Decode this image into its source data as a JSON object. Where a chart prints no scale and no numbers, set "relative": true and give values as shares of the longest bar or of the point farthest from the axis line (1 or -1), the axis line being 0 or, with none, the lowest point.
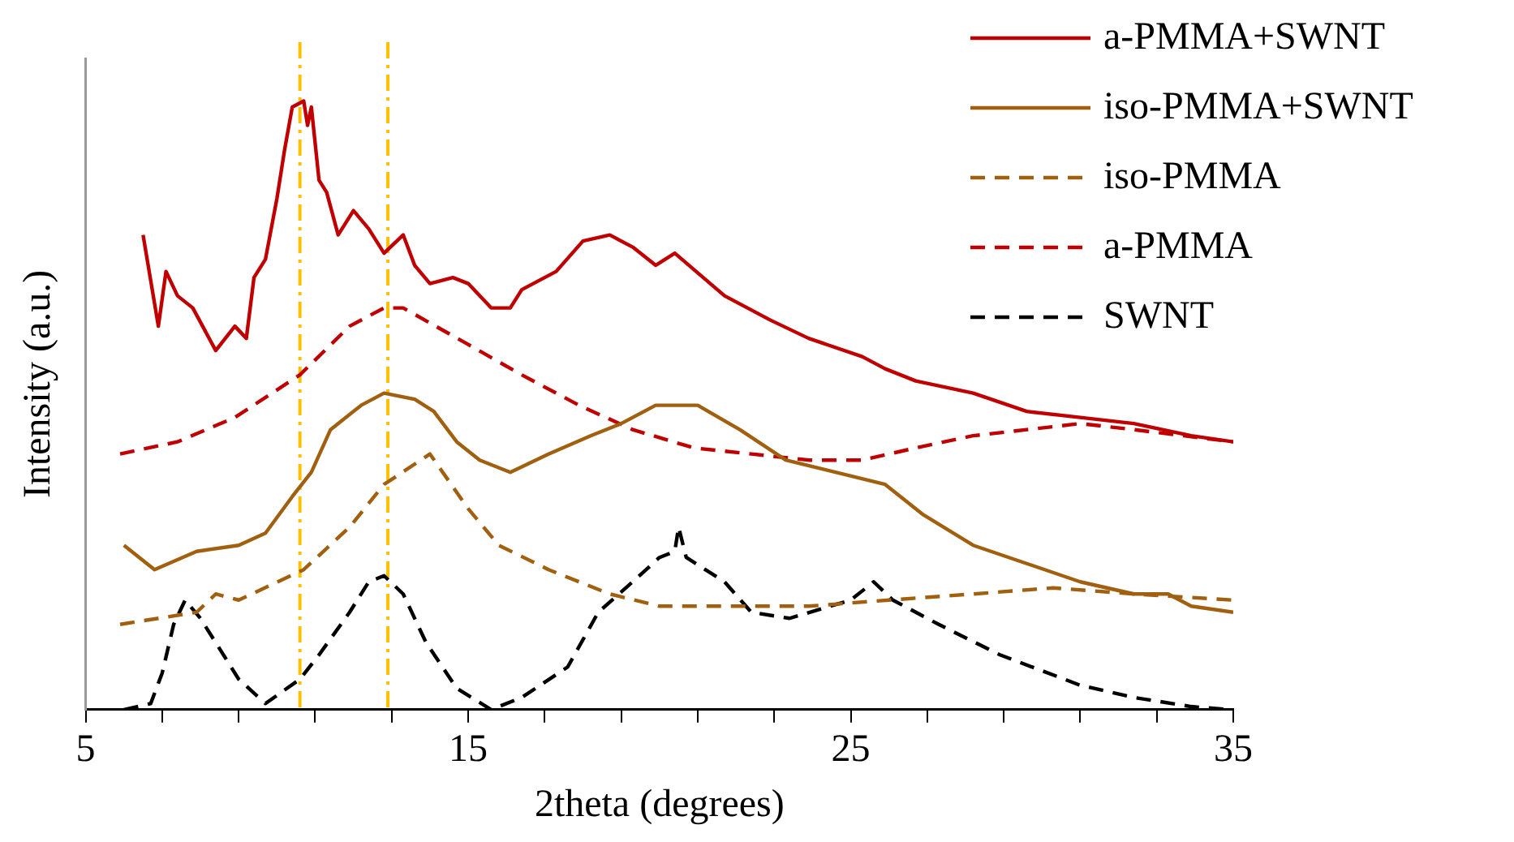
{
  "chart_data": {
    "type": "line",
    "relative": true,
    "xlabel": "2theta (degrees)",
    "ylabel": "Intensity (a.u.)",
    "xlim": [
      5,
      35
    ],
    "xticks": [
      5,
      {
        "value": 7,
        "label": null
      },
      {
        "value": 9,
        "label": null
      },
      {
        "value": 11,
        "label": null
      },
      {
        "value": 13,
        "label": null
      },
      15,
      {
        "value": 17,
        "label": null
      },
      {
        "value": 19,
        "label": null
      },
      {
        "value": 21,
        "label": null
      },
      {
        "value": 23,
        "label": null
      },
      25,
      {
        "value": 27,
        "label": null
      },
      {
        "value": 29,
        "label": null
      },
      {
        "value": 31,
        "label": null
      },
      {
        "value": 33,
        "label": null
      },
      35
    ],
    "legend": "top right",
    "marker": "none",
    "grid": false,
    "ref_lines": [
      {
        "axis": "x",
        "value": 10.6,
        "color": "#ffc000",
        "line_style": "dashdot"
      },
      {
        "axis": "x",
        "value": 12.9,
        "color": "#ffc000",
        "line_style": "dashdot"
      }
    ],
    "series": [
      {
        "name": "a-PMMA+SWNT",
        "color": "#c00000",
        "line_style": "solid",
        "x": [
          6.5,
          6.9,
          7.1,
          7.4,
          7.8,
          8.4,
          8.9,
          9.2,
          9.4,
          9.7,
          10.0,
          10.2,
          10.4,
          10.7,
          10.8,
          10.9,
          11.1,
          11.3,
          11.6,
          12.0,
          12.4,
          12.8,
          13.3,
          13.6,
          14.0,
          14.6,
          15.0,
          15.6,
          16.1,
          16.4,
          17.3,
          18.0,
          18.7,
          19.3,
          19.9,
          20.4,
          21.7,
          22.9,
          23.9,
          25.3,
          25.9,
          26.7,
          28.2,
          29.6,
          31.0,
          32.4,
          33.9,
          35.0
        ],
        "values": [
          0.78,
          0.63,
          0.72,
          0.68,
          0.66,
          0.59,
          0.63,
          0.61,
          0.71,
          0.74,
          0.84,
          0.92,
          0.99,
          1,
          0.96,
          0.99,
          0.87,
          0.85,
          0.78,
          0.82,
          0.79,
          0.75,
          0.78,
          0.73,
          0.7,
          0.71,
          0.7,
          0.66,
          0.66,
          0.69,
          0.72,
          0.77,
          0.78,
          0.76,
          0.73,
          0.75,
          0.68,
          0.64,
          0.61,
          0.58,
          0.56,
          0.54,
          0.52,
          0.49,
          0.48,
          0.47,
          0.45,
          0.44
        ]
      },
      {
        "name": "iso-PMMA+SWNT",
        "color": "#a0600f",
        "line_style": "solid",
        "x": [
          6.0,
          6.8,
          7.9,
          9.0,
          9.7,
          10.4,
          10.9,
          11.4,
          12.2,
          12.8,
          13.6,
          14.1,
          14.7,
          15.3,
          16.1,
          17.1,
          18.2,
          19.0,
          19.9,
          20.3,
          21.0,
          22.1,
          23.3,
          24.6,
          25.9,
          26.9,
          28.2,
          29.6,
          31.0,
          32.4,
          33.3,
          33.9,
          35.0
        ],
        "values": [
          0.27,
          0.23,
          0.26,
          0.27,
          0.29,
          0.35,
          0.39,
          0.46,
          0.5,
          0.52,
          0.51,
          0.49,
          0.44,
          0.41,
          0.39,
          0.42,
          0.45,
          0.47,
          0.5,
          0.5,
          0.5,
          0.46,
          0.41,
          0.39,
          0.37,
          0.32,
          0.27,
          0.24,
          0.21,
          0.19,
          0.19,
          0.17,
          0.16
        ]
      },
      {
        "name": "iso-PMMA",
        "color": "#a0600f",
        "line_style": "dashed",
        "x": [
          5.9,
          7.9,
          8.4,
          9.0,
          10.7,
          11.9,
          12.8,
          14.0,
          15.0,
          15.8,
          17.1,
          18.7,
          20.0,
          21.7,
          23.9,
          26.0,
          28.2,
          30.3,
          32.4,
          35.0
        ],
        "values": [
          0.14,
          0.16,
          0.19,
          0.18,
          0.23,
          0.3,
          0.37,
          0.42,
          0.33,
          0.27,
          0.23,
          0.19,
          0.17,
          0.17,
          0.17,
          0.18,
          0.19,
          0.2,
          0.19,
          0.18
        ]
      },
      {
        "name": "a-PMMA",
        "color": "#c00000",
        "line_style": "dashed",
        "x": [
          5.9,
          7.4,
          8.9,
          10.6,
          11.9,
          12.8,
          13.3,
          15.0,
          16.4,
          17.9,
          19.3,
          20.9,
          22.4,
          23.9,
          25.3,
          26.7,
          28.2,
          29.6,
          31.0,
          32.4,
          33.7,
          35.0
        ],
        "values": [
          0.42,
          0.44,
          0.48,
          0.55,
          0.63,
          0.66,
          0.66,
          0.6,
          0.55,
          0.5,
          0.46,
          0.43,
          0.42,
          0.41,
          0.41,
          0.43,
          0.45,
          0.46,
          0.47,
          0.46,
          0.45,
          0.44
        ]
      },
      {
        "name": "SWNT",
        "color": "#000000",
        "line_style": "dashed",
        "x": [
          6.0,
          6.7,
          7.0,
          7.3,
          7.6,
          8.0,
          8.4,
          9.0,
          9.7,
          10.6,
          11.1,
          11.9,
          12.4,
          12.8,
          13.3,
          13.9,
          14.7,
          15.6,
          16.4,
          17.6,
          18.4,
          19.3,
          20.0,
          20.4,
          20.5,
          20.7,
          21.7,
          22.4,
          23.4,
          25.0,
          25.6,
          26.1,
          27.3,
          28.9,
          31.0,
          32.4,
          33.9,
          34.9
        ],
        "values": [
          0,
          0.01,
          0.06,
          0.14,
          0.18,
          0.15,
          0.11,
          0.05,
          0.01,
          0.05,
          0.09,
          0.16,
          0.21,
          0.22,
          0.19,
          0.11,
          0.035,
          0,
          0.02,
          0.07,
          0.16,
          0.21,
          0.25,
          0.26,
          0.3,
          0.25,
          0.21,
          0.16,
          0.15,
          0.18,
          0.21,
          0.18,
          0.14,
          0.09,
          0.04,
          0.02,
          0.005,
          0
        ]
      }
    ]
  }
}
